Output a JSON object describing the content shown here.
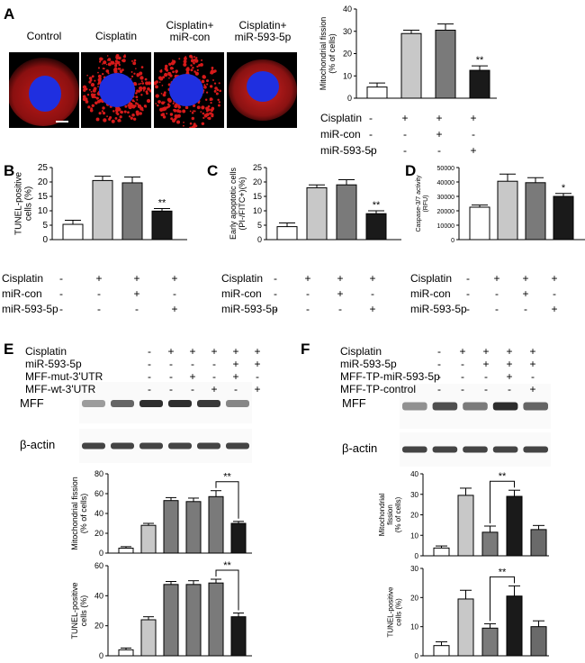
{
  "panels": {
    "A": "A",
    "B": "B",
    "C": "C",
    "D": "D",
    "E": "E",
    "F": "F"
  },
  "micrographs": {
    "labels": [
      "Control",
      "Cisplatin",
      "Cisplatin+\nmiR-con",
      "Cisplatin+\nmiR-593-5p"
    ]
  },
  "blots": {
    "E": {
      "target": "MFF",
      "loading": "β-actin"
    },
    "F": {
      "target": "MFF",
      "loading": "β-actin"
    }
  },
  "treatments": {
    "A": {
      "rows": [
        {
          "label": "Cisplatin",
          "signs": [
            "-",
            "+",
            "+",
            "+"
          ]
        },
        {
          "label": "miR-con",
          "signs": [
            "-",
            "-",
            "+",
            "-"
          ]
        },
        {
          "label": "miR-593-5p",
          "signs": [
            "-",
            "-",
            "-",
            "+"
          ]
        }
      ]
    },
    "B": {
      "rows": [
        {
          "label": "Cisplatin",
          "signs": [
            "-",
            "+",
            "+",
            "+"
          ]
        },
        {
          "label": "miR-con",
          "signs": [
            "-",
            "-",
            "+",
            "-"
          ]
        },
        {
          "label": "miR-593-5p",
          "signs": [
            "-",
            "-",
            "-",
            "+"
          ]
        }
      ]
    },
    "C": {
      "rows": [
        {
          "label": "Cisplatin",
          "signs": [
            "-",
            "+",
            "+",
            "+"
          ]
        },
        {
          "label": "miR-con",
          "signs": [
            "-",
            "-",
            "+",
            "-"
          ]
        },
        {
          "label": "miR-593-5p",
          "signs": [
            "-",
            "-",
            "-",
            "+"
          ]
        }
      ]
    },
    "D": {
      "rows": [
        {
          "label": "Cisplatin",
          "signs": [
            "-",
            "+",
            "+",
            "+"
          ]
        },
        {
          "label": "miR-con",
          "signs": [
            "-",
            "-",
            "+",
            "-"
          ]
        },
        {
          "label": "miR-593-5p",
          "signs": [
            "-",
            "-",
            "-",
            "+"
          ]
        }
      ]
    },
    "E": {
      "rows": [
        {
          "label": "Cisplatin",
          "signs": [
            "-",
            "+",
            "+",
            "+",
            "+",
            "+"
          ]
        },
        {
          "label": "miR-593-5p",
          "signs": [
            "-",
            "-",
            "-",
            "-",
            "+",
            "+"
          ]
        },
        {
          "label": "MFF-mut-3'UTR",
          "signs": [
            "-",
            "-",
            "+",
            "-",
            "+",
            "-"
          ]
        },
        {
          "label": "MFF-wt-3'UTR",
          "signs": [
            "-",
            "-",
            "-",
            "+",
            "-",
            "+"
          ]
        }
      ]
    },
    "F": {
      "rows": [
        {
          "label": "Cisplatin",
          "signs": [
            "-",
            "+",
            "+",
            "+",
            "+"
          ]
        },
        {
          "label": "miR-593-5p",
          "signs": [
            "-",
            "-",
            "+",
            "+",
            "+"
          ]
        },
        {
          "label": "MFF-TP-miR-593-5p",
          "signs": [
            "-",
            "-",
            "-",
            "+",
            "-"
          ]
        },
        {
          "label": "MFF-TP-control",
          "signs": [
            "-",
            "-",
            "-",
            "-",
            "+"
          ]
        }
      ]
    }
  },
  "colors": {
    "bar_fills": [
      "#ffffff",
      "#c8c8c8",
      "#7a7a7a",
      "#1a1a1a"
    ],
    "F_bar_fills": [
      "#ffffff",
      "#c8c8c8",
      "#7a7a7a",
      "#1a1a1a",
      "#6a6a6a"
    ],
    "E_bar_fills": [
      "#ffffff",
      "#c8c8c8",
      "#7a7a7a",
      "#7a7a7a",
      "#7a7a7a",
      "#1a1a1a"
    ],
    "cell_red": "#d61a1a",
    "nucleus_blue": "#1f2fe0"
  },
  "chart_data": [
    {
      "id": "A",
      "type": "bar",
      "ylabel": "Mitochondrial fission\n(% of cells)",
      "ylim": [
        0,
        40
      ],
      "yticks": [
        0,
        10,
        20,
        30,
        40
      ],
      "values": [
        5,
        29,
        30.5,
        12.5
      ],
      "errors": [
        1.8,
        1.5,
        2.8,
        2
      ],
      "annotations": [
        {
          "bar": 3,
          "text": "**"
        }
      ]
    },
    {
      "id": "B",
      "type": "bar",
      "ylabel": "TUNEL-positive\ncells (%)",
      "ylim": [
        0,
        25
      ],
      "yticks": [
        0,
        5,
        10,
        15,
        20,
        25
      ],
      "values": [
        5.3,
        20.5,
        19.7,
        9.9
      ],
      "errors": [
        1.4,
        1.5,
        2.0,
        0.9
      ],
      "annotations": [
        {
          "bar": 3,
          "text": "**"
        }
      ]
    },
    {
      "id": "C",
      "type": "bar",
      "ylabel": "Early apoptotic cells\n(PI-/FITC+)(%)",
      "ylim": [
        0,
        25
      ],
      "yticks": [
        0,
        5,
        10,
        15,
        20,
        25
      ],
      "values": [
        4.5,
        18,
        19,
        9
      ],
      "errors": [
        1.3,
        1.0,
        1.8,
        1.0
      ],
      "annotations": [
        {
          "bar": 3,
          "text": "**"
        }
      ]
    },
    {
      "id": "D",
      "type": "bar",
      "ylabel": "Caspase-3/7 activity\n(RFU)",
      "ylim": [
        0,
        50000
      ],
      "yticks": [
        0,
        10000,
        20000,
        30000,
        40000,
        50000
      ],
      "values": [
        22500,
        40500,
        39500,
        30000
      ],
      "errors": [
        1500,
        5000,
        3500,
        2000
      ],
      "annotations": [
        {
          "bar": 3,
          "text": "*"
        }
      ]
    },
    {
      "id": "E-fission",
      "type": "bar",
      "ylabel": "Mitochondrial fission\n(% of cells)",
      "ylim": [
        0,
        80
      ],
      "yticks": [
        0,
        20,
        40,
        60,
        80
      ],
      "values": [
        5,
        28,
        53,
        52,
        57,
        30
      ],
      "errors": [
        1.5,
        2,
        3,
        3.5,
        6,
        2
      ],
      "bracket": {
        "from": 4,
        "to": 5,
        "text": "**"
      }
    },
    {
      "id": "E-tunel",
      "type": "bar",
      "ylabel": "TUNEL-positive\ncells (%)",
      "ylim": [
        0,
        60
      ],
      "yticks": [
        0,
        20,
        40,
        60
      ],
      "values": [
        4,
        24,
        47.5,
        47.5,
        48.5,
        26
      ],
      "errors": [
        1.2,
        2,
        2,
        2.5,
        2.5,
        2.5
      ],
      "bracket": {
        "from": 4,
        "to": 5,
        "text": "**"
      }
    },
    {
      "id": "F-fission",
      "type": "bar",
      "ylabel": "Mitochondrial\nfission\n(% of cells)",
      "ylim": [
        0,
        40
      ],
      "yticks": [
        0,
        10,
        20,
        30,
        40
      ],
      "values": [
        3.8,
        29.5,
        11.5,
        29,
        12.8
      ],
      "errors": [
        1,
        3.5,
        3,
        3,
        2
      ],
      "bracket": {
        "from": 2,
        "to": 3,
        "text": "**"
      }
    },
    {
      "id": "F-tunel",
      "type": "bar",
      "ylabel": "TUNEL-positive\ncells (%)",
      "ylim": [
        0,
        30
      ],
      "yticks": [
        0,
        10,
        20,
        30
      ],
      "values": [
        3.5,
        19.5,
        9.5,
        20.5,
        10
      ],
      "errors": [
        1.3,
        3,
        1.5,
        3.5,
        2
      ],
      "bracket": {
        "from": 2,
        "to": 3,
        "text": "**"
      }
    }
  ]
}
